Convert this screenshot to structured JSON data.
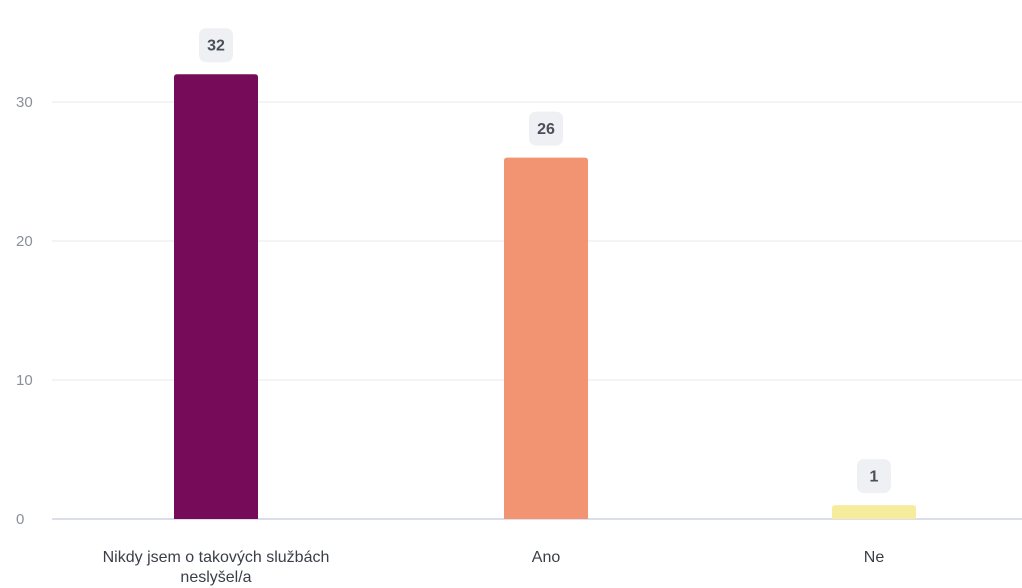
{
  "chart_data": {
    "type": "bar",
    "title": "",
    "xlabel": "",
    "ylabel": "",
    "categories": [
      [
        "Nikdy jsem o takových službách",
        "neslyšel/a"
      ],
      [
        "Ano"
      ],
      [
        "Ne"
      ]
    ],
    "values": [
      32,
      26,
      1
    ],
    "value_labels": [
      "32",
      "26",
      "1"
    ],
    "bar_colors": [
      "#760c59",
      "#f29471",
      "#f7ec9e"
    ],
    "ylim": [
      0,
      30
    ],
    "yticks": [
      0,
      10,
      20,
      30
    ],
    "ytick_labels": [
      "0",
      "10",
      "20",
      "30"
    ],
    "grid": true,
    "colors": {
      "grid": "#e6e8ec",
      "axis": "#cfd3e6",
      "label_bg": "#eef0f3"
    }
  }
}
